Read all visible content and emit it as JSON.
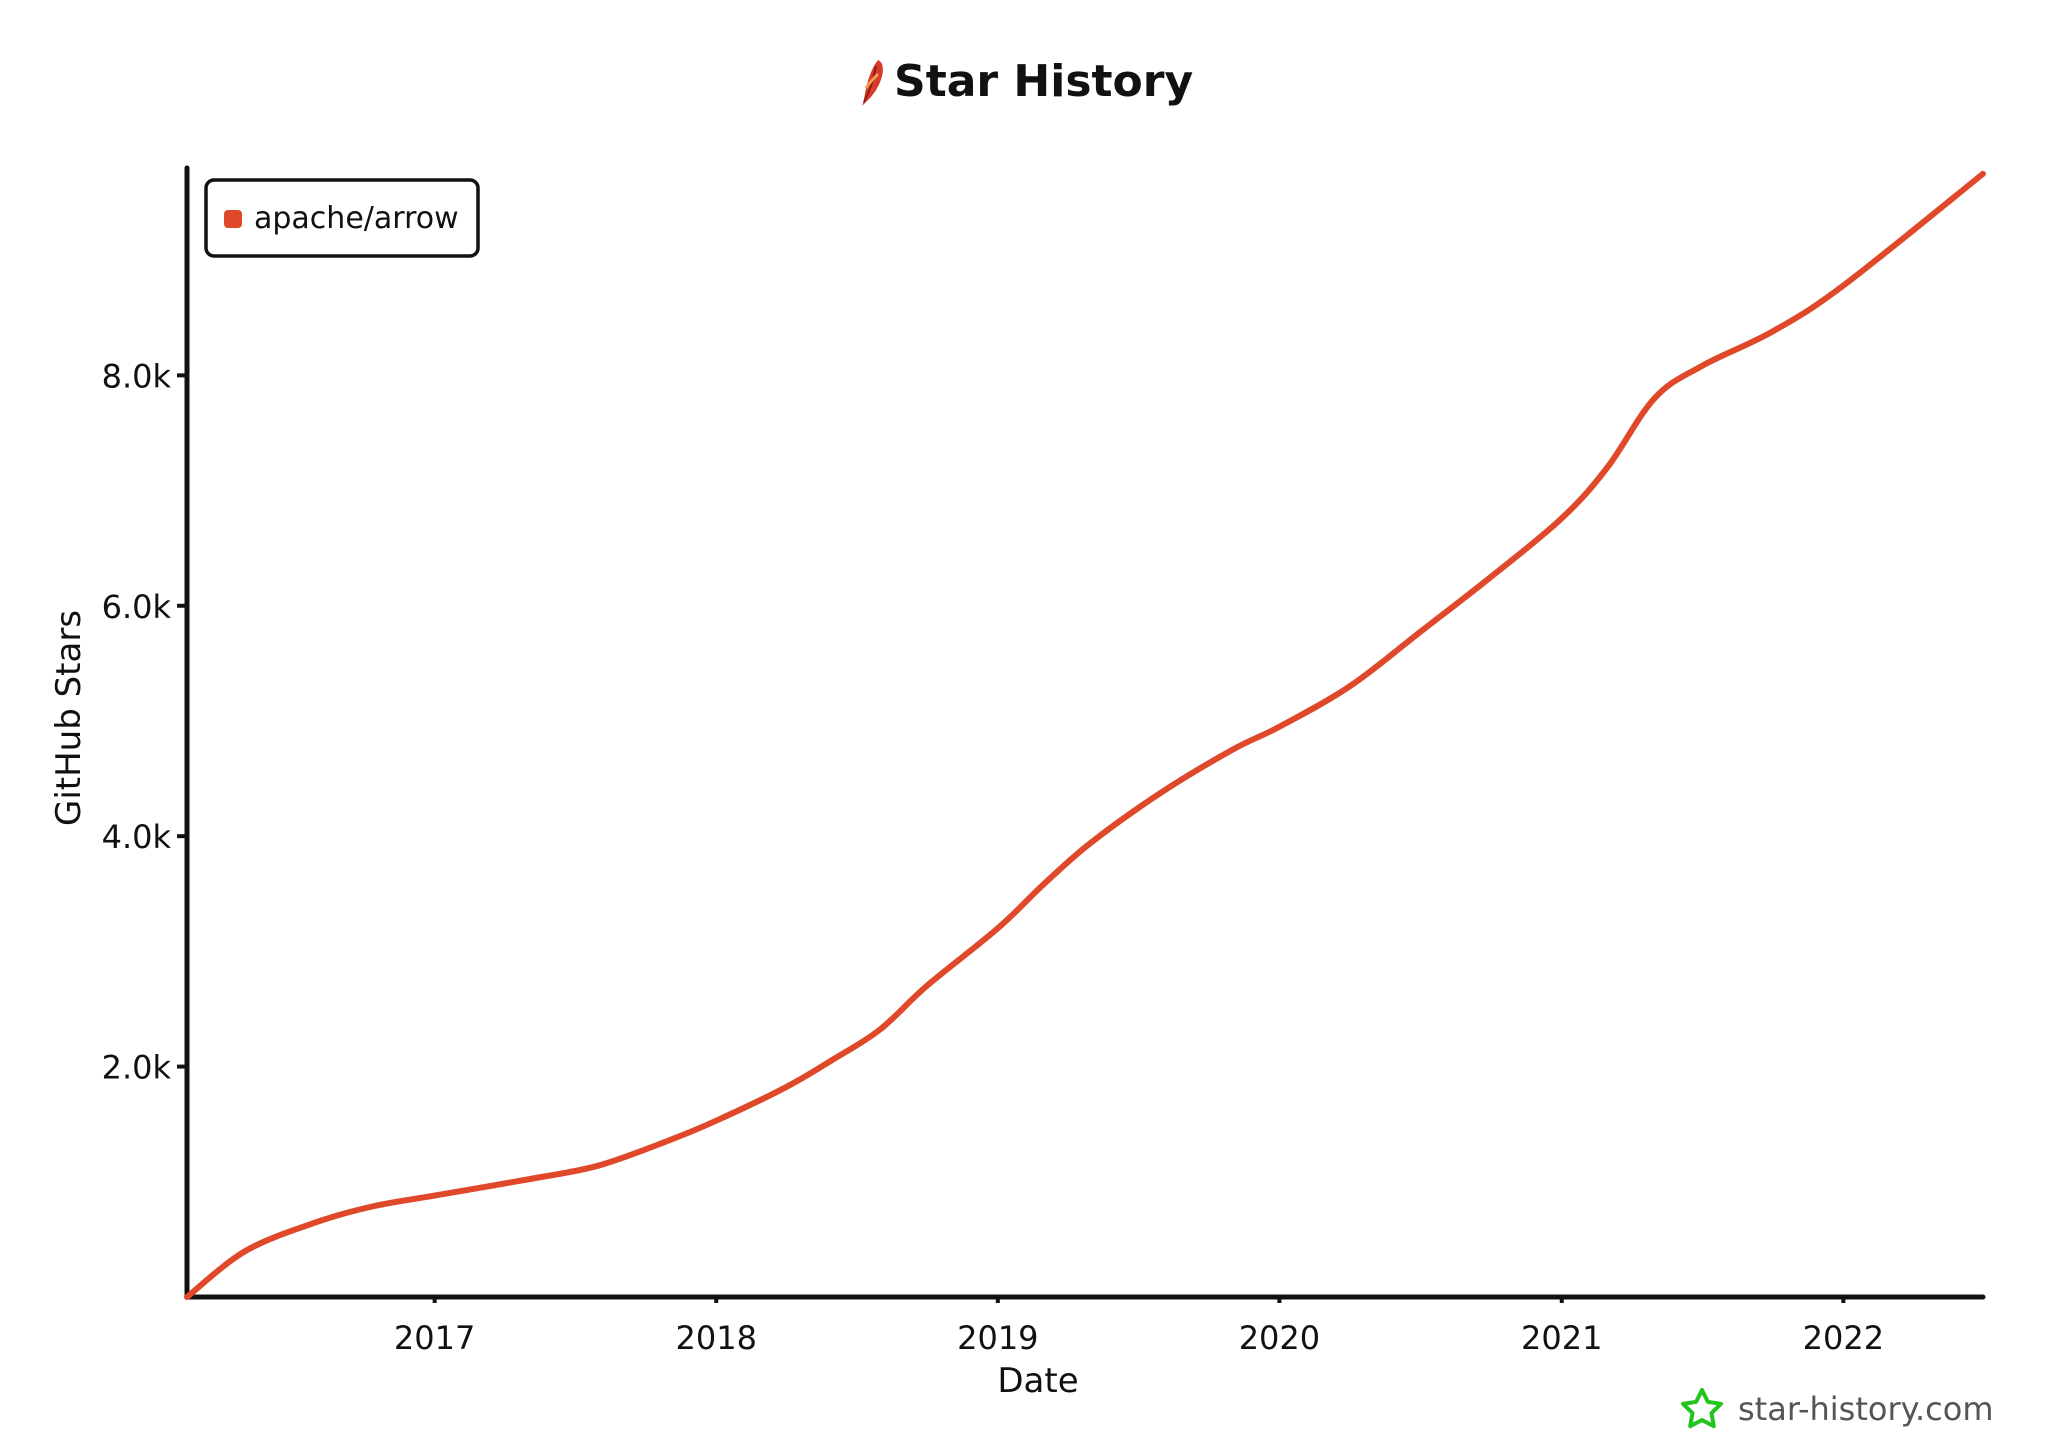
{
  "watermark": {
    "text": "star-history.com",
    "icon": "star-icon",
    "icon_color": "#22c51e"
  },
  "colors": {
    "series": "#e0482a",
    "axis": "#111111"
  },
  "chart_data": {
    "type": "line",
    "title": "Star History",
    "title_icon": "feather-icon",
    "xlabel": "Date",
    "ylabel": "GitHub Stars",
    "xlim": [
      "2016-02-15",
      "2022-07-01"
    ],
    "ylim": [
      0,
      9800
    ],
    "x_ticks": [
      "2017",
      "2018",
      "2019",
      "2020",
      "2021",
      "2022"
    ],
    "y_ticks": [
      2000,
      4000,
      6000,
      8000
    ],
    "y_tick_labels": [
      "2.0k",
      "4.0k",
      "6.0k",
      "8.0k"
    ],
    "grid": false,
    "legend": {
      "position": "top-left",
      "entries": [
        "apache/arrow"
      ]
    },
    "series": [
      {
        "name": "apache/arrow",
        "color": "#e0482a",
        "points": [
          [
            "2016-02-15",
            0
          ],
          [
            "2016-05-01",
            400
          ],
          [
            "2016-08-01",
            650
          ],
          [
            "2016-10-15",
            790
          ],
          [
            "2017-01-01",
            880
          ],
          [
            "2017-05-01",
            1020
          ],
          [
            "2017-08-01",
            1140
          ],
          [
            "2017-11-01",
            1360
          ],
          [
            "2018-01-01",
            1530
          ],
          [
            "2018-04-01",
            1820
          ],
          [
            "2018-06-01",
            2060
          ],
          [
            "2018-08-01",
            2320
          ],
          [
            "2018-10-01",
            2700
          ],
          [
            "2019-01-01",
            3200
          ],
          [
            "2019-03-01",
            3580
          ],
          [
            "2019-05-01",
            3940
          ],
          [
            "2019-08-01",
            4380
          ],
          [
            "2019-11-01",
            4750
          ],
          [
            "2020-01-01",
            4950
          ],
          [
            "2020-04-01",
            5300
          ],
          [
            "2020-07-01",
            5770
          ],
          [
            "2020-10-01",
            6250
          ],
          [
            "2021-01-01",
            6760
          ],
          [
            "2021-03-01",
            7200
          ],
          [
            "2021-05-01",
            7800
          ],
          [
            "2021-07-01",
            8080
          ],
          [
            "2021-10-01",
            8380
          ],
          [
            "2022-01-01",
            8780
          ],
          [
            "2022-07-01",
            9750
          ]
        ]
      }
    ]
  }
}
